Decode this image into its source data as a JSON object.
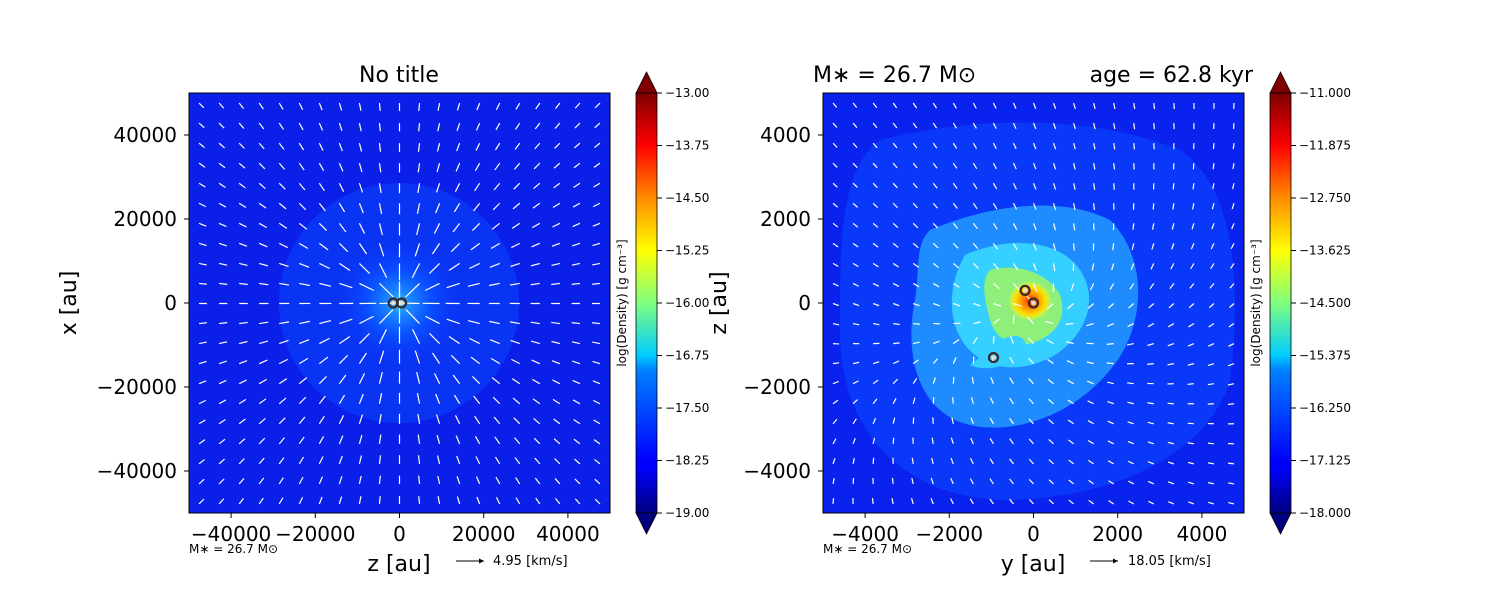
{
  "figure": {
    "caption_mass": "M∗ = 26.7 M⊙",
    "caption_age": "age = 62.8 kyr",
    "left_title": "No title"
  },
  "chart_data": [
    {
      "type": "heatmap",
      "title": "No title",
      "xlabel": "z [au]",
      "ylabel": "x [au]",
      "xlim": [
        -50000,
        50000
      ],
      "ylim": [
        -50000,
        50000
      ],
      "xticks": [
        -40000,
        -20000,
        0,
        20000,
        40000
      ],
      "yticks": [
        -40000,
        -20000,
        0,
        20000,
        40000
      ],
      "xtick_labels": [
        "−40000",
        "−20000",
        "0",
        "20000",
        "40000"
      ],
      "ytick_labels": [
        "−40000",
        "−20000",
        "0",
        "20000",
        "40000"
      ],
      "colorbar": {
        "label": "log(Density) [g cm⁻³]",
        "range": [
          -19.0,
          -13.0
        ],
        "ticks": [
          -19.0,
          -18.25,
          -17.5,
          -16.75,
          -16.0,
          -15.25,
          -14.5,
          -13.75,
          -13.0
        ],
        "tick_labels": [
          "−19.00",
          "−18.25",
          "−17.50",
          "−16.75",
          "−16.00",
          "−15.25",
          "−14.50",
          "−13.75",
          "−13.00"
        ],
        "colormap": "jet"
      },
      "mass_label": "M∗ = 26.7 M⊙",
      "velocity_key": "4.95 [km/s]",
      "sinks": [
        [
          -1500,
          0
        ],
        [
          500,
          0
        ]
      ],
      "field": "spherical_infall"
    },
    {
      "type": "heatmap",
      "title": "",
      "xlabel": "y [au]",
      "ylabel": "z [au]",
      "xlim": [
        -5000,
        5000
      ],
      "ylim": [
        -5000,
        5000
      ],
      "xticks": [
        -4000,
        -2000,
        0,
        2000,
        4000
      ],
      "yticks": [
        -4000,
        -2000,
        0,
        2000,
        4000
      ],
      "xtick_labels": [
        "−4000",
        "−2000",
        "0",
        "2000",
        "4000"
      ],
      "ytick_labels": [
        "−4000",
        "−2000",
        "0",
        "2000",
        "4000"
      ],
      "colorbar": {
        "label": "log(Density) [g cm⁻³]",
        "range": [
          -18.0,
          -11.0
        ],
        "ticks": [
          -18.0,
          -17.125,
          -16.25,
          -15.375,
          -14.5,
          -13.625,
          -12.75,
          -11.875,
          -11.0
        ],
        "tick_labels": [
          "−18.000",
          "−17.125",
          "−16.250",
          "−15.375",
          "−14.500",
          "−13.625",
          "−12.750",
          "−11.875",
          "−11.000"
        ],
        "colormap": "jet"
      },
      "mass_label": "M∗ = 26.7 M⊙",
      "velocity_key": "18.05 [km/s]",
      "sinks": [
        [
          -200,
          300
        ],
        [
          0,
          0
        ],
        [
          -950,
          -1300
        ]
      ],
      "field": "fragmented_disk"
    }
  ]
}
